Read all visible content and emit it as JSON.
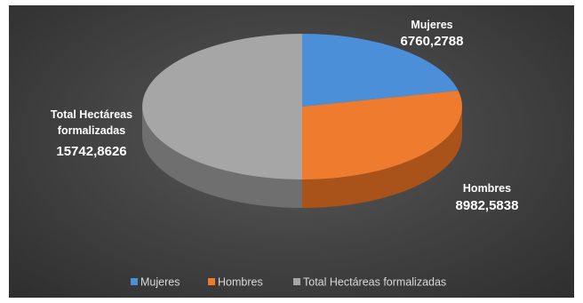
{
  "chart_data": {
    "type": "pie",
    "title": "",
    "categories": [
      "Mujeres",
      "Hombres",
      "Total Hectáreas formalizadas"
    ],
    "values": [
      6760.2788,
      8982.5838,
      15742.8626
    ],
    "value_labels": [
      "6760,2788",
      "8982,5838",
      "15742,8626"
    ],
    "colors": [
      "#4a8fd8",
      "#ee7b2e",
      "#a6a6a6"
    ],
    "side_colors": [
      "#2d5f96",
      "#a9531a",
      "#6f6f6f"
    ],
    "three_d": true,
    "legend_position": "bottom"
  },
  "labels": {
    "mujeres": {
      "name": "Mujeres",
      "value": "6760,2788"
    },
    "hombres": {
      "name": "Hombres",
      "value": "8982,5838"
    },
    "total": {
      "name_line1": "Total Hectáreas",
      "name_line2": "formalizadas",
      "value": "15742,8626"
    }
  },
  "legend": {
    "items": [
      {
        "label": "Mujeres",
        "color": "#4a8fd8"
      },
      {
        "label": "Hombres",
        "color": "#ee7b2e"
      },
      {
        "label": "Total Hectáreas formalizadas",
        "color": "#a6a6a6"
      }
    ]
  }
}
